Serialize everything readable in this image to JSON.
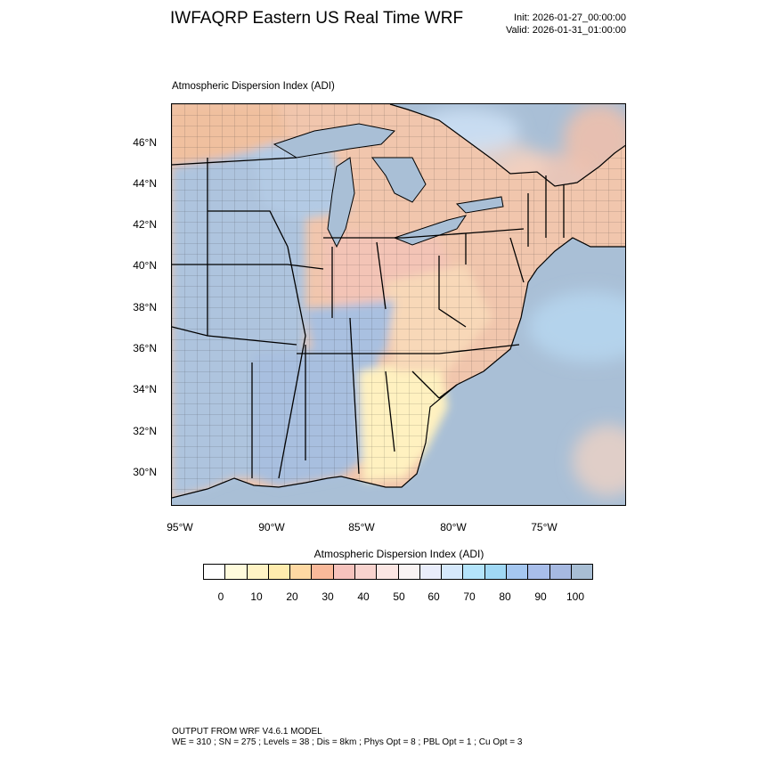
{
  "title": "IWFAQRP Eastern US Real Time WRF",
  "init_time": "Init: 2026-01-27_00:00:00",
  "valid_time": "Valid: 2026-01-31_01:00:00",
  "plot_subtitle": "Atmospheric Dispersion Index   (ADI)",
  "lat_labels": [
    "46°N",
    "44°N",
    "42°N",
    "40°N",
    "38°N",
    "36°N",
    "34°N",
    "32°N",
    "30°N"
  ],
  "lon_labels": [
    "95°W",
    "90°W",
    "85°W",
    "80°W",
    "75°W"
  ],
  "colorbar": {
    "title": "Atmospheric Dispersion Index  (ADI)",
    "labels": [
      "0",
      "10",
      "20",
      "30",
      "40",
      "50",
      "60",
      "70",
      "80",
      "90",
      "100"
    ],
    "colors": [
      "#ffffff",
      "#fffbdc",
      "#fff3c4",
      "#ffecae",
      "#ffd9a3",
      "#f9b99a",
      "#f6c3bd",
      "#f8d3ce",
      "#fbe6e3",
      "#f9f3f3",
      "#e9edfb",
      "#d5e8fb",
      "#b4e4fb",
      "#a0d8f5",
      "#a5c7f0",
      "#a8beea",
      "#a6b9e1",
      "#a8bed4"
    ]
  },
  "footer": {
    "line1": "OUTPUT FROM WRF V4.6.1 MODEL",
    "line2": "WE = 310 ; SN = 275 ; Levels = 38 ; Dis = 8km ; Phys Opt = 8 ; PBL Opt = 1 ; Cu Opt = 3"
  }
}
